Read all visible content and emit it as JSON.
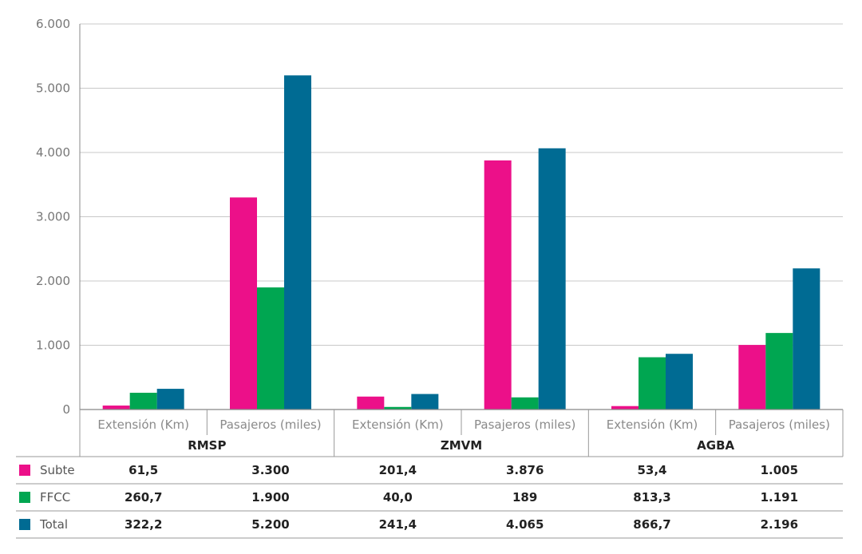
{
  "chart_data": {
    "type": "bar",
    "ylim": [
      0,
      6000
    ],
    "y_ticks": [
      0,
      1000,
      2000,
      3000,
      4000,
      5000,
      6000
    ],
    "y_tick_labels": [
      "0",
      "1.000",
      "2.000",
      "3.000",
      "4.000",
      "5.000",
      "6.000"
    ],
    "groups": [
      "RMSP",
      "ZMVM",
      "AGBA"
    ],
    "categories": [
      "Extensión (Km)",
      "Pasajeros (miles)",
      "Extensión (Km)",
      "Pasajeros (miles)",
      "Extensión (Km)",
      "Pasajeros (miles)"
    ],
    "series": [
      {
        "name": "Subte",
        "color": "#ec1089",
        "values": [
          61.5,
          3300,
          201.4,
          3876,
          53.4,
          1005
        ],
        "labels": [
          "61,5",
          "3.300",
          "201,4",
          "3.876",
          "53,4",
          "1.005"
        ]
      },
      {
        "name": "FFCC",
        "color": "#00a651",
        "values": [
          260.7,
          1900,
          40.0,
          189,
          813.3,
          1191
        ],
        "labels": [
          "260,7",
          "1.900",
          "40,0",
          "189",
          "813,3",
          "1.191"
        ]
      },
      {
        "name": "Total",
        "color": "#006b93",
        "values": [
          322.2,
          5200,
          241.4,
          4065,
          866.7,
          2196
        ],
        "labels": [
          "322,2",
          "5.200",
          "241,4",
          "4.065",
          "866,7",
          "2.196"
        ]
      }
    ],
    "grid": true,
    "legend": "table-below"
  }
}
